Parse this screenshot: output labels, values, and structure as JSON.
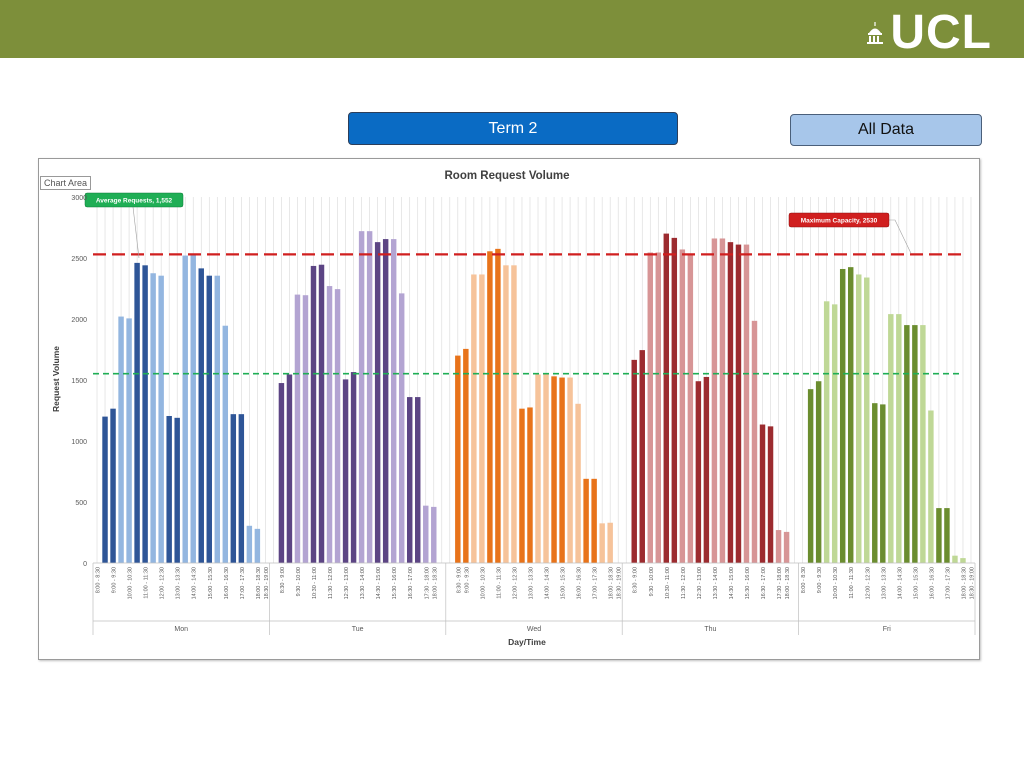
{
  "header": {
    "logo_text": "UCL",
    "bar_color": "#7d8f3a",
    "dome_icon": "ucl-portico-dome-icon"
  },
  "controls": {
    "term_label": "Term 2",
    "all_data_label": "All Data",
    "term_color": "#0a6bc4",
    "all_data_color": "#a7c6ea"
  },
  "chart_frame": {
    "chart_area_label": "Chart Area"
  },
  "chart_data": {
    "type": "bar",
    "title": "Room Request Volume",
    "xlabel": "Day/Time",
    "ylabel": "Request Volume",
    "ylim": [
      0,
      3000
    ],
    "yticks": [
      0,
      500,
      1000,
      1500,
      2000,
      2500,
      3000
    ],
    "grid": "vertical",
    "days": [
      "Mon",
      "Tue",
      "Wed",
      "Thu",
      "Fri"
    ],
    "day_colors": {
      "Mon": {
        "dark": "#2e5597",
        "light": "#93b6e0"
      },
      "Tue": {
        "dark": "#5c4584",
        "light": "#b3a4d2"
      },
      "Wed": {
        "dark": "#e8731a",
        "light": "#f6c39a"
      },
      "Thu": {
        "dark": "#9c2b2f",
        "light": "#d79596"
      },
      "Fri": {
        "dark": "#6b8d2f",
        "light": "#bfd896"
      }
    },
    "slots": [
      {
        "label": "8:00 - 8:30",
        "shade": "none"
      },
      {
        "label": "8:30 - 9:00",
        "shade": "dark"
      },
      {
        "label": "9:00 - 9:30",
        "shade": "dark"
      },
      {
        "label": "9:30 - 10:00",
        "shade": "light"
      },
      {
        "label": "10:00 - 10:30",
        "shade": "light"
      },
      {
        "label": "10:30 - 11:00",
        "shade": "dark"
      },
      {
        "label": "11:00 - 11:30",
        "shade": "dark"
      },
      {
        "label": "11:30 - 12:00",
        "shade": "light"
      },
      {
        "label": "12:00 - 12:30",
        "shade": "light"
      },
      {
        "label": "12:30 - 13:00",
        "shade": "dark"
      },
      {
        "label": "13:00 - 13:30",
        "shade": "dark"
      },
      {
        "label": "13:30 - 14:00",
        "shade": "light"
      },
      {
        "label": "14:00 - 14:30",
        "shade": "light"
      },
      {
        "label": "14:30 - 15:00",
        "shade": "dark"
      },
      {
        "label": "15:00 - 15:30",
        "shade": "dark"
      },
      {
        "label": "15:30 - 16:00",
        "shade": "light"
      },
      {
        "label": "16:00 - 16:30",
        "shade": "light"
      },
      {
        "label": "16:30 - 17:00",
        "shade": "dark"
      },
      {
        "label": "17:00 - 17:30",
        "shade": "dark"
      },
      {
        "label": "17:30 - 18:00",
        "shade": "light"
      },
      {
        "label": "18:00 - 18:30",
        "shade": "light"
      },
      {
        "label": "18:30 - 19:00",
        "shade": "none"
      }
    ],
    "tick_labels": {
      "Mon": [
        "8:00 - 8:30",
        "9:00 - 9:30",
        "10:00 - 10:30",
        "11:00 - 11:30",
        "12:00 - 12:30",
        "13:00 - 13:30",
        "14:00 - 14:30",
        "15:00 - 15:30",
        "16:00 - 16:30",
        "17:00 - 17:30",
        "18:00 - 18:30",
        "18:30 - 19:00"
      ],
      "Tue": [
        "8:30 - 9:00",
        "9:30 - 10:00",
        "10:30 - 11:00",
        "11:30 - 12:00",
        "12:30 - 13:00",
        "13:30 - 14:00",
        "14:30 - 15:00",
        "15:30 - 16:00",
        "16:30 - 17:00",
        "17:30 - 18:00",
        "18:00 - 18:30"
      ],
      "Wed": [
        "8:30 - 9:00",
        "9:00 - 9:30",
        "10:00 - 10:30",
        "11:00 - 11:30",
        "12:00 - 12:30",
        "13:00 - 13:30",
        "14:00 - 14:30",
        "15:00 - 15:30",
        "16:00 - 16:30",
        "17:00 - 17:30",
        "18:00 - 18:30",
        "18:30 - 19:00"
      ],
      "Thu": [
        "8:30 - 9:00",
        "9:30 - 10:00",
        "10:30 - 11:00",
        "11:30 - 12:00",
        "12:30 - 13:00",
        "13:30 - 14:00",
        "14:30 - 15:00",
        "15:30 - 16:00",
        "16:30 - 17:00",
        "17:30 - 18:00",
        "18:00 - 18:30"
      ],
      "Fri": [
        "8:00 - 8:30",
        "9:00 - 9:30",
        "10:00 - 10:30",
        "11:00 - 11:30",
        "12:00 - 12:30",
        "13:00 - 13:30",
        "14:00 - 14:30",
        "15:00 - 15:30",
        "16:00 - 16:30",
        "17:00 - 17:30",
        "18:00 - 18:30",
        "18:30 - 19:00"
      ]
    },
    "series": [
      {
        "name": "Mon",
        "values": [
          0,
          1200,
          1265,
          2020,
          2005,
          2460,
          2440,
          2375,
          2355,
          1205,
          1190,
          2520,
          2525,
          2415,
          2355,
          2355,
          1945,
          1220,
          1220,
          305,
          280,
          0
        ]
      },
      {
        "name": "Tue",
        "values": [
          0,
          1475,
          1545,
          2200,
          2195,
          2435,
          2445,
          2270,
          2245,
          1505,
          1565,
          2720,
          2720,
          2630,
          2655,
          2655,
          2210,
          1360,
          1360,
          470,
          460,
          0
        ]
      },
      {
        "name": "Wed",
        "values": [
          0,
          1700,
          1755,
          2365,
          2365,
          2555,
          2575,
          2440,
          2440,
          1265,
          1275,
          1545,
          1545,
          1530,
          1520,
          1520,
          1305,
          690,
          690,
          325,
          330,
          0
        ]
      },
      {
        "name": "Thu",
        "values": [
          0,
          1665,
          1745,
          2545,
          2545,
          2700,
          2665,
          2570,
          2530,
          1490,
          1525,
          2660,
          2660,
          2630,
          2610,
          2610,
          1985,
          1135,
          1120,
          270,
          255,
          0
        ]
      },
      {
        "name": "Fri",
        "values": [
          0,
          1425,
          1490,
          2145,
          2120,
          2410,
          2425,
          2365,
          2340,
          1310,
          1300,
          2040,
          2040,
          1950,
          1950,
          1950,
          1250,
          450,
          450,
          60,
          40,
          0
        ]
      }
    ],
    "reference_lines": [
      {
        "name": "average",
        "value": 1552,
        "label": "Average Requests, 1,552",
        "color": "#1fae55"
      },
      {
        "name": "maximum",
        "value": 2530,
        "label": "Maximum Capacity, 2530",
        "color": "#d01f1f"
      }
    ]
  }
}
